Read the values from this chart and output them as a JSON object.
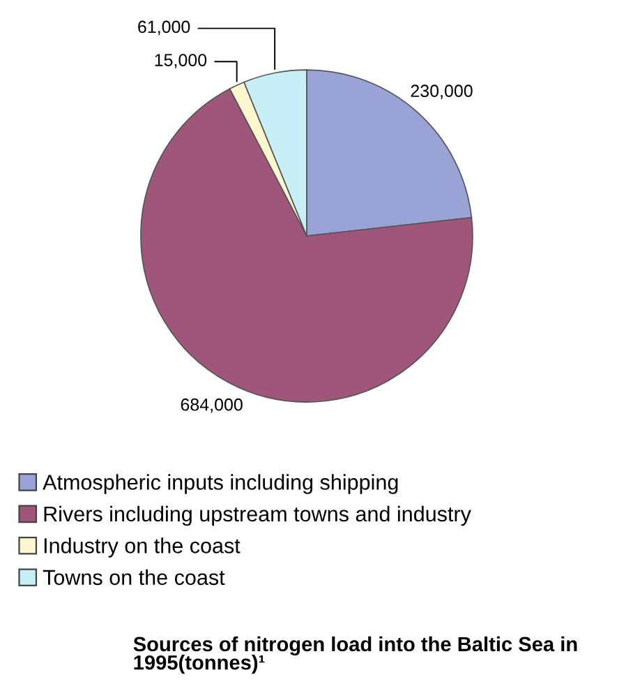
{
  "chart_data": {
    "type": "pie",
    "title": "Sources of nitrogen load into the Baltic Sea in 1995(tonnes)¹",
    "categories": [
      "Atmospheric inputs including shipping",
      "Rivers including upstream towns and industry",
      "Industry on the coast",
      "Towns on the coast"
    ],
    "values": [
      230000,
      684000,
      15000,
      61000
    ],
    "value_labels": [
      "230,000",
      "684,000",
      "15,000",
      "61,000"
    ],
    "colors": [
      "#99a3d6",
      "#a0567a",
      "#fdf7cf",
      "#c8eef8"
    ],
    "legend": "bottom"
  }
}
